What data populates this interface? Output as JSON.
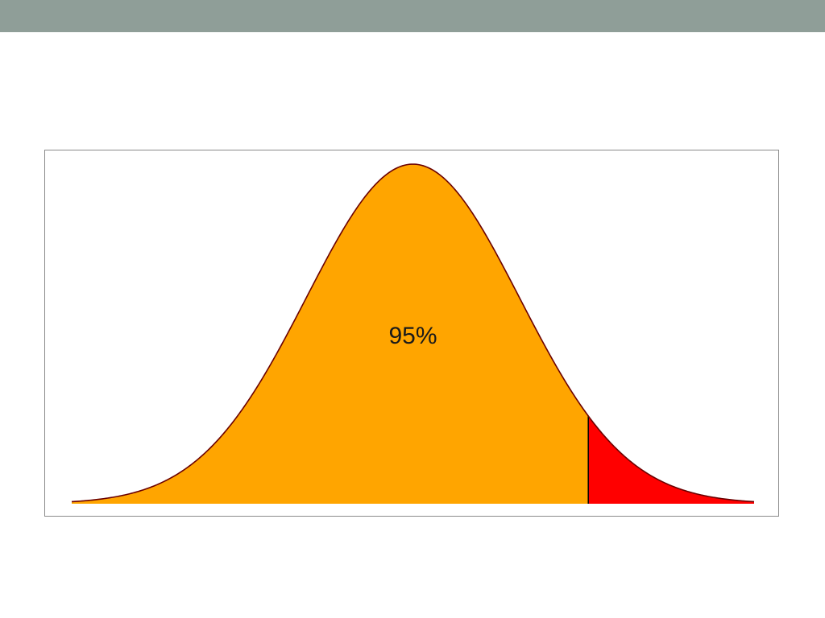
{
  "slide": {
    "header_color": "#8f9e98"
  },
  "chart_data": {
    "type": "area",
    "distribution": "standard-normal",
    "x_range": [
      -3.2,
      3.2
    ],
    "cutoff_z": 1.645,
    "regions": [
      {
        "label": "95%",
        "from": -3.2,
        "to": 1.645,
        "color": "#ffa500"
      },
      {
        "label": "",
        "from": 1.645,
        "to": 3.2,
        "color": "#ff0000"
      }
    ],
    "curve_color": "#6b0000",
    "cutoff_line_color": "#000000",
    "grid": false,
    "axes_shown": false
  }
}
